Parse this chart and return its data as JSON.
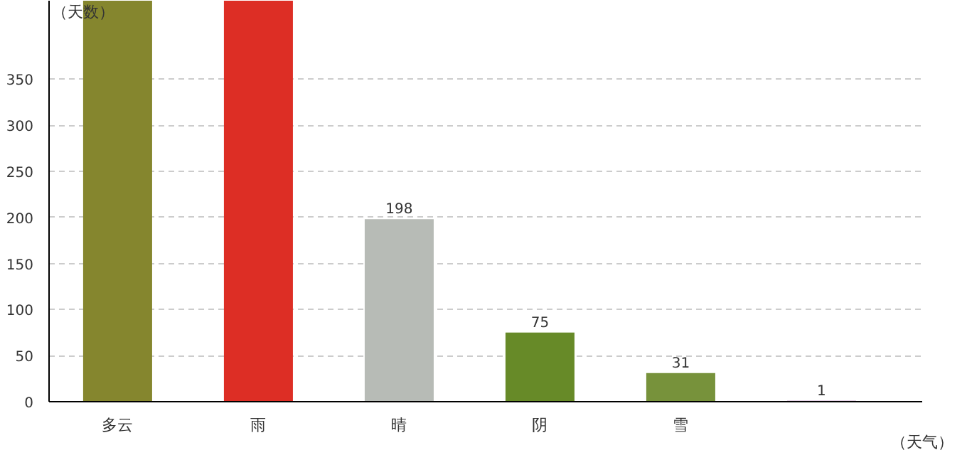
{
  "chart_data": {
    "type": "bar",
    "xlabel": "（天气）",
    "ylabel": "（天数）",
    "categories": [
      "多云",
      "雨",
      "晴",
      "阴",
      "雪",
      null
    ],
    "values": [
      435,
      435,
      198,
      75,
      31,
      1
    ],
    "colors": [
      "#85862e",
      "#dd2e25",
      "#b7bbb6",
      "#678a28",
      "#77923b",
      "#9b4ea0"
    ],
    "value_labels": [
      null,
      null,
      "198",
      "75",
      "31",
      "1"
    ],
    "ylim": [
      0,
      435
    ],
    "yticks": [
      0,
      50,
      100,
      150,
      200,
      250,
      300,
      350
    ],
    "grid": "y"
  }
}
